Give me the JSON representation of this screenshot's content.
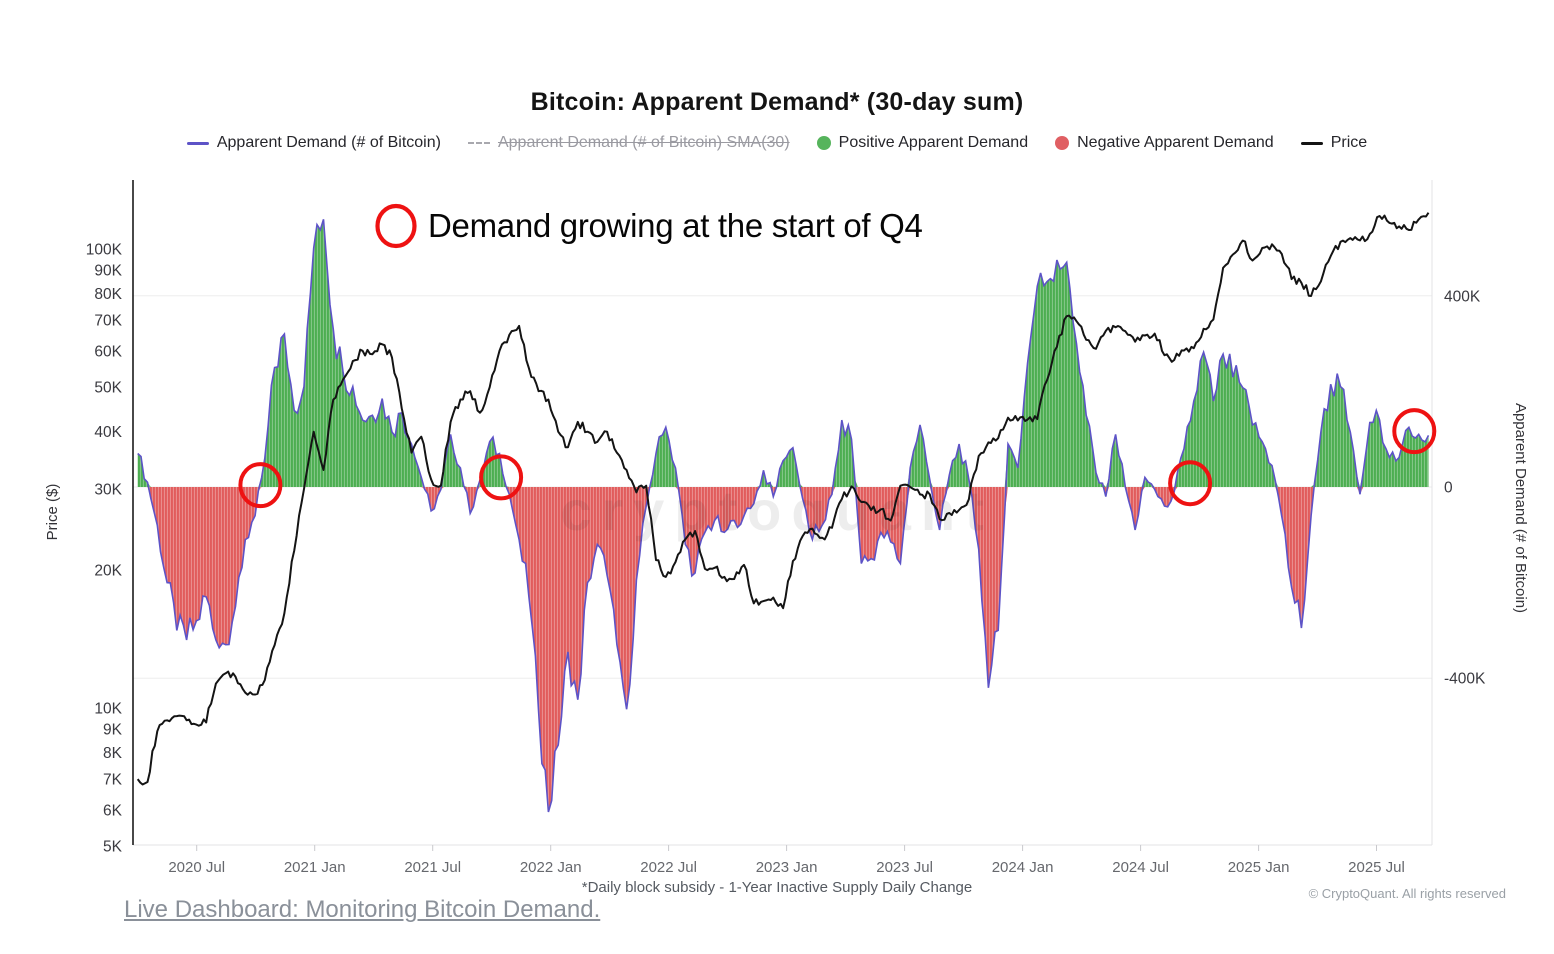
{
  "title": "Bitcoin: Apparent Demand* (30-day sum)",
  "legend": [
    {
      "label": "Apparent Demand (# of Bitcoin)",
      "marker": "line",
      "color": "#5d53c7",
      "disabled": false
    },
    {
      "label": "Apparent Demand (# of Bitcoin) SMA(30)",
      "marker": "dashed-line",
      "color": "#a8a8ae",
      "disabled": true
    },
    {
      "label": "Positive Apparent Demand",
      "marker": "dot",
      "color": "#56b45c",
      "disabled": false
    },
    {
      "label": "Negative Apparent Demand",
      "marker": "dot",
      "color": "#e05f63",
      "disabled": false
    },
    {
      "label": "Price",
      "marker": "line",
      "color": "#141414",
      "disabled": false
    }
  ],
  "annotation": {
    "text": "Demand growing at the start of Q4",
    "circle_color": "#ee1212"
  },
  "watermark": "cryptoquant",
  "footnote": "*Daily block subsidy - 1-Year Inactive Supply Daily Change",
  "copyright": "© CryptoQuant. All rights reserved",
  "link": {
    "text": "Live Dashboard: Monitoring Bitcoin Demand."
  },
  "axes": {
    "left": {
      "label": "Price ($)",
      "scale": "log",
      "ticks": [
        {
          "label": "100K",
          "value": 100
        },
        {
          "label": "90K",
          "value": 90
        },
        {
          "label": "80K",
          "value": 80
        },
        {
          "label": "70K",
          "value": 70
        },
        {
          "label": "60K",
          "value": 60
        },
        {
          "label": "50K",
          "value": 50
        },
        {
          "label": "40K",
          "value": 40
        },
        {
          "label": "30K",
          "value": 30
        },
        {
          "label": "20K",
          "value": 20
        },
        {
          "label": "10K",
          "value": 10
        },
        {
          "label": "9K",
          "value": 9
        },
        {
          "label": "8K",
          "value": 8
        },
        {
          "label": "7K",
          "value": 7
        },
        {
          "label": "6K",
          "value": 6
        },
        {
          "label": "5K",
          "value": 5
        }
      ]
    },
    "right": {
      "label": "Apparent Demand (# of Bitcoin)",
      "scale": "linear",
      "ticks": [
        {
          "label": "400K",
          "value": 400
        },
        {
          "label": "0",
          "value": 0
        },
        {
          "label": "-400K",
          "value": -400
        }
      ]
    },
    "x": {
      "ticks": [
        {
          "label": "2020 Jul",
          "t": 2020.5
        },
        {
          "label": "2021 Jan",
          "t": 2021.0
        },
        {
          "label": "2021 Jul",
          "t": 2021.5
        },
        {
          "label": "2022 Jan",
          "t": 2022.0
        },
        {
          "label": "2022 Jul",
          "t": 2022.5
        },
        {
          "label": "2023 Jan",
          "t": 2023.0
        },
        {
          "label": "2023 Jul",
          "t": 2023.5
        },
        {
          "label": "2024 Jan",
          "t": 2024.0
        },
        {
          "label": "2024 Jul",
          "t": 2024.5
        },
        {
          "label": "2025 Jan",
          "t": 2025.0
        },
        {
          "label": "2025 Jul",
          "t": 2025.5
        }
      ]
    }
  },
  "chart_data": {
    "type": "area+line",
    "title": "Bitcoin: Apparent Demand* (30-day sum)",
    "grid": "horizontal-only",
    "legend_position": "top",
    "x_start_year": 2020.25,
    "x_step_years": 0.04144,
    "x_domain_years": [
      2020.23,
      2025.74
    ],
    "left_axis": {
      "name": "Price ($)",
      "scale": "log",
      "range_thousand_usd": [
        5,
        141
      ]
    },
    "right_axis": {
      "name": "Apparent Demand (# of Bitcoin)",
      "scale": "linear",
      "range_thousand_btc": [
        -749,
        642
      ]
    },
    "series": [
      {
        "name": "Apparent Demand (# of Bitcoin)",
        "axis": "right",
        "unit": "thousand BTC",
        "style": {
          "line_color": "#5d53c7",
          "positive_fill": "#4cae51",
          "negative_fill": "#e15c5c"
        },
        "values": [
          70,
          10,
          -80,
          -200,
          -300,
          -320,
          -280,
          -230,
          -320,
          -330,
          -250,
          -110,
          -60,
          60,
          250,
          320,
          160,
          210,
          500,
          560,
          330,
          240,
          210,
          140,
          150,
          185,
          115,
          155,
          90,
          20,
          -50,
          -5,
          110,
          40,
          -55,
          15,
          95,
          70,
          -15,
          -110,
          -230,
          -470,
          -680,
          -540,
          -345,
          -445,
          -200,
          -120,
          -185,
          -330,
          -465,
          -195,
          -40,
          70,
          125,
          40,
          -120,
          -180,
          -95,
          -70,
          -95,
          -70,
          -60,
          -35,
          35,
          -20,
          55,
          82,
          -25,
          -110,
          -80,
          -15,
          140,
          100,
          -160,
          -150,
          -95,
          -115,
          -160,
          40,
          130,
          15,
          -90,
          25,
          90,
          15,
          -130,
          -420,
          -300,
          90,
          40,
          260,
          420,
          430,
          475,
          470,
          300,
          150,
          30,
          -20,
          110,
          0,
          -90,
          20,
          -5,
          -40,
          -10,
          80,
          180,
          282,
          180,
          278,
          230,
          208,
          130,
          95,
          45,
          -62,
          -210,
          -295,
          -60,
          115,
          215,
          210,
          115,
          -15,
          135,
          140,
          62,
          62,
          125,
          110,
          108
        ]
      },
      {
        "name": "Price",
        "axis": "left",
        "unit": "thousand USD",
        "style": {
          "line_color": "#141414"
        },
        "values": [
          7.0,
          6.9,
          8.9,
          9.4,
          9.6,
          9.4,
          9.2,
          9.3,
          11.3,
          11.9,
          11.7,
          10.8,
          10.7,
          11.5,
          13.7,
          16.1,
          22,
          30,
          40,
          33,
          47,
          52,
          57,
          60,
          59,
          62,
          58,
          45,
          36,
          39,
          31.5,
          30.5,
          42,
          47,
          49,
          44,
          50,
          60,
          65,
          68,
          55,
          49,
          47,
          40,
          37,
          42,
          40,
          38,
          40,
          36,
          33,
          29.5,
          30.5,
          21,
          19.3,
          20.8,
          23.3,
          24.3,
          20.1,
          20.2,
          19.3,
          19.1,
          20.5,
          16.9,
          17.1,
          17.4,
          16.5,
          20.9,
          23.7,
          24.6,
          23.5,
          24.7,
          28.5,
          30.4,
          28.1,
          27.0,
          27.1,
          25.6,
          30.5,
          30.3,
          29.2,
          29.2,
          25.8,
          26.6,
          27.0,
          28.5,
          35.4,
          37.9,
          38.7,
          42.9,
          42.3,
          42.5,
          42.6,
          51.8,
          61.2,
          71.4,
          69.6,
          63.4,
          60.6,
          66.3,
          67.5,
          66.2,
          62.8,
          64.8,
          65.4,
          58.7,
          57.3,
          60.1,
          60.8,
          67.0,
          70.2,
          91.0,
          97.3,
          104.3,
          94.4,
          100.5,
          102.4,
          97.5,
          86.0,
          84.4,
          79.0,
          85.0,
          96.5,
          103.7,
          105.6,
          104.4,
          107.8,
          118.0,
          114.0,
          112.0,
          110.0,
          116.0,
          120.0
        ]
      }
    ],
    "highlight_circles": [
      {
        "t": 2020.77,
        "demand_k": 4
      },
      {
        "t": 2021.79,
        "demand_k": 20
      },
      {
        "t": 2024.71,
        "demand_k": 8
      },
      {
        "t": 2025.66,
        "demand_k": 117
      }
    ],
    "highlight_color": "#ee1212"
  }
}
